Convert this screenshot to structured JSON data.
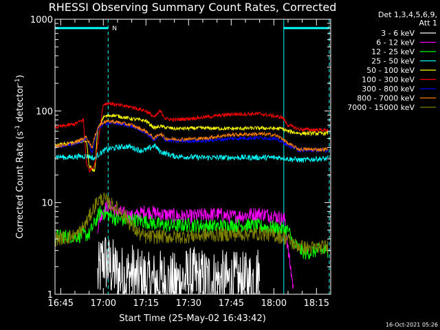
{
  "chart_data": {
    "type": "line",
    "title": "RHESSI Observing Summary Count Rates, Corrected",
    "xlabel": "Start Time (25-May-02 16:43:42)",
    "ylabel": "Corrected Count Rate (s",
    "ylabel_sup1": "-1",
    "ylabel_mid": " detector",
    "ylabel_sup2": "-1",
    "ylabel_end": ")",
    "y_scale": "log",
    "ylim": [
      1,
      1000
    ],
    "xlim_minutes": [
      -2.0,
      95.0
    ],
    "x_origin": "16:45",
    "x_ticks": [
      {
        "m": 0,
        "label": "16:45"
      },
      {
        "m": 15,
        "label": "17:00"
      },
      {
        "m": 30,
        "label": "17:15"
      },
      {
        "m": 45,
        "label": "17:30"
      },
      {
        "m": 60,
        "label": "17:45"
      },
      {
        "m": 75,
        "label": "18:00"
      },
      {
        "m": 90,
        "label": "18:15"
      }
    ],
    "y_ticks": [
      {
        "v": 1,
        "label": "1"
      },
      {
        "v": 10,
        "label": "10"
      },
      {
        "v": 100,
        "label": "100"
      },
      {
        "v": 1000,
        "label": "1000"
      }
    ],
    "grid": false,
    "legend_position": "right",
    "legend_header": [
      "Det 1,3,4,5,6,9,",
      "Att 1"
    ],
    "attenuator_marker": "N",
    "night_markers": [
      {
        "start": -2.0,
        "end": 16.7,
        "solid_at": -2.0,
        "dashed_at": 16.7
      },
      {
        "start": 78.5,
        "end": 94.5,
        "solid_at": 78.5,
        "dashed_at": 94.5
      }
    ],
    "series": [
      {
        "name": "3 - 6 keV",
        "color": "#ffffff",
        "x": [
          13.0,
          15.0,
          17.0,
          19.0,
          21.0,
          23.0,
          25.0,
          27.0,
          29.0,
          31.0,
          35.0,
          40.0,
          45.0,
          55.0,
          65.0,
          70.0
        ],
        "y": [
          1.5,
          2.5,
          2.0,
          1.8,
          1.6,
          1.5,
          1.7,
          1.4,
          1.5,
          1.3,
          1.4,
          1.3,
          1.5,
          1.4,
          1.3,
          1.6
        ]
      },
      {
        "name": "6 - 12 keV",
        "color": "#ff00ff",
        "x": [
          13.0,
          15.0,
          17.0,
          20.0,
          25.0,
          30.0,
          35.0,
          40.0,
          45.0,
          50.0,
          55.0,
          60.0,
          65.0,
          70.0,
          75.0,
          79.0,
          80.0,
          82.0
        ],
        "y": [
          5.5,
          8.5,
          9.0,
          8.0,
          7.0,
          8.0,
          7.5,
          7.2,
          7.0,
          7.3,
          7.5,
          7.0,
          7.3,
          7.6,
          7.2,
          6.5,
          3.0,
          1.1
        ]
      },
      {
        "name": "12 - 25 keV",
        "color": "#00ff00",
        "x": [
          -2.0,
          5.0,
          10.0,
          12.0,
          14.0,
          16.0,
          18.0,
          20.0,
          25.0,
          30.0,
          35.0,
          40.0,
          45.0,
          50.0,
          55.0,
          60.0,
          65.0,
          70.0,
          75.0,
          80.0,
          82.0,
          86.0,
          90.0,
          94.0
        ],
        "y": [
          4.3,
          4.3,
          4.5,
          6.0,
          8.0,
          7.5,
          7.0,
          6.5,
          6.5,
          6.2,
          5.7,
          5.6,
          5.7,
          5.6,
          5.5,
          5.6,
          5.7,
          5.5,
          5.3,
          5.0,
          3.5,
          2.8,
          3.0,
          3.0
        ]
      },
      {
        "name": "25 - 50 keV",
        "color": "#00ffff",
        "x": [
          -2.0,
          2.0,
          7.0,
          10.0,
          12.0,
          13.0,
          16.0,
          20.0,
          24.0,
          28.0,
          30.0,
          33.0,
          35.0,
          40.0,
          50.0,
          60.0,
          70.0,
          78.0,
          80.0,
          85.0,
          90.0,
          94.0
        ],
        "y": [
          32.0,
          31.0,
          32.0,
          32.0,
          30.0,
          33.0,
          38.0,
          40.0,
          41.0,
          37.0,
          37.5,
          42.0,
          36.0,
          32.0,
          31.0,
          31.0,
          31.0,
          31.0,
          30.0,
          29.0,
          30.0,
          30.0
        ]
      },
      {
        "name": "50 - 100 keV",
        "color": "#ffff00",
        "x": [
          -2.0,
          5.0,
          9.0,
          10.0,
          12.0,
          13.0,
          15.0,
          18.0,
          20.0,
          25.0,
          30.0,
          33.0,
          35.0,
          37.0,
          40.0,
          50.0,
          60.0,
          70.0,
          78.0,
          80.0,
          84.0,
          90.0,
          94.0
        ],
        "y": [
          42.0,
          45.0,
          48.0,
          25.0,
          22.0,
          60.0,
          86.0,
          90.0,
          88.0,
          82.0,
          78.0,
          65.0,
          68.0,
          66.0,
          64.0,
          65.0,
          64.0,
          65.0,
          64.0,
          60.0,
          57.0,
          57.0,
          57.0
        ]
      },
      {
        "name": "100 - 300 keV",
        "color": "#ff0000",
        "x": [
          -2.0,
          5.0,
          8.0,
          9.0,
          10.0,
          12.0,
          15.0,
          17.0,
          20.0,
          25.0,
          30.0,
          33.0,
          35.0,
          37.0,
          40.0,
          50.0,
          60.0,
          70.0,
          75.0,
          78.0,
          80.0,
          84.0,
          90.0,
          94.0
        ],
        "y": [
          66.0,
          72.0,
          80.0,
          28.0,
          22.0,
          26.0,
          118.0,
          122.0,
          116.0,
          110.0,
          100.0,
          85.0,
          100.0,
          82.0,
          80.0,
          85.0,
          92.0,
          93.0,
          88.0,
          85.0,
          70.0,
          63.0,
          62.0,
          62.0
        ]
      },
      {
        "name": "300 - 800 keV",
        "color": "#0000ff",
        "x": [
          -2.0,
          5.0,
          9.0,
          11.0,
          13.0,
          15.0,
          18.0,
          20.0,
          25.0,
          30.0,
          33.0,
          35.0,
          37.0,
          40.0,
          50.0,
          60.0,
          70.0,
          75.0,
          78.0,
          80.0,
          84.0,
          90.0,
          94.0
        ],
        "y": [
          40.0,
          44.0,
          50.0,
          35.0,
          62.0,
          73.0,
          74.0,
          73.0,
          68.0,
          58.0,
          48.0,
          55.0,
          48.0,
          47.0,
          47.0,
          50.0,
          51.0,
          50.0,
          46.0,
          42.0,
          37.0,
          37.0,
          37.0
        ]
      },
      {
        "name": "800 - 7000 keV",
        "color": "#ff8000",
        "x": [
          -2.0,
          5.0,
          9.0,
          11.0,
          13.0,
          15.0,
          18.0,
          20.0,
          25.0,
          30.0,
          33.0,
          35.0,
          37.0,
          40.0,
          50.0,
          60.0,
          70.0,
          75.0,
          78.0,
          80.0,
          84.0,
          90.0,
          94.0
        ],
        "y": [
          41.0,
          45.0,
          52.0,
          40.0,
          66.0,
          76.0,
          77.0,
          75.0,
          70.0,
          60.0,
          50.0,
          57.0,
          50.0,
          49.0,
          50.0,
          55.0,
          56.0,
          55.0,
          50.0,
          44.0,
          38.0,
          38.0,
          38.0
        ]
      },
      {
        "name": "7000 - 15000 keV",
        "color": "#808000",
        "x": [
          -2.0,
          3.0,
          6.0,
          9.0,
          11.0,
          13.0,
          15.0,
          17.0,
          20.0,
          23.0,
          25.0,
          28.0,
          30.0,
          35.0,
          40.0,
          50.0,
          60.0,
          70.0,
          75.0,
          78.0,
          80.0,
          82.0,
          86.0,
          90.0,
          94.0
        ],
        "y": [
          4.0,
          4.2,
          4.5,
          6.0,
          8.0,
          10.5,
          11.0,
          10.0,
          8.5,
          7.0,
          5.5,
          4.5,
          4.2,
          4.3,
          4.2,
          4.4,
          4.5,
          4.6,
          4.4,
          4.2,
          4.0,
          3.5,
          3.2,
          3.2,
          3.3
        ]
      }
    ]
  },
  "footer_date": "16-Oct-2021 05:26"
}
